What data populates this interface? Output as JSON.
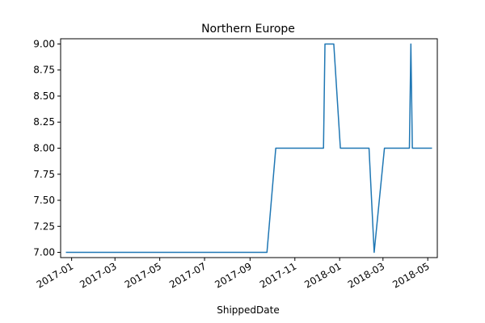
{
  "chart_data": {
    "type": "line",
    "title": "Northern Europe",
    "xlabel": "ShippedDate",
    "ylabel": "",
    "grid": false,
    "x_tick_labels": [
      "2017-01",
      "2017-03",
      "2017-05",
      "2017-07",
      "2017-09",
      "2017-11",
      "2018-01",
      "2018-03",
      "2018-05"
    ],
    "y_tick_labels": [
      "7.00",
      "7.25",
      "7.50",
      "7.75",
      "8.00",
      "8.25",
      "8.50",
      "8.75",
      "9.00"
    ],
    "y_ticks": [
      7.0,
      7.25,
      7.5,
      7.75,
      8.0,
      8.25,
      8.5,
      8.75,
      9.0
    ],
    "ylim": [
      6.95,
      9.05
    ],
    "xlim": [
      "2016-12-17",
      "2018-05-14"
    ],
    "series": [
      {
        "color": "#1f77b4",
        "points": [
          [
            "2016-12-25",
            7.0
          ],
          [
            "2017-09-24",
            7.0
          ],
          [
            "2017-10-06",
            8.0
          ],
          [
            "2017-12-10",
            8.0
          ],
          [
            "2017-12-12",
            9.0
          ],
          [
            "2017-12-24",
            9.0
          ],
          [
            "2018-01-02",
            8.0
          ],
          [
            "2018-02-10",
            8.0
          ],
          [
            "2018-02-17",
            7.0
          ],
          [
            "2018-03-03",
            8.0
          ],
          [
            "2018-04-06",
            8.0
          ],
          [
            "2018-04-08",
            9.0
          ],
          [
            "2018-04-10",
            8.0
          ],
          [
            "2018-05-06",
            8.0
          ]
        ]
      }
    ]
  }
}
